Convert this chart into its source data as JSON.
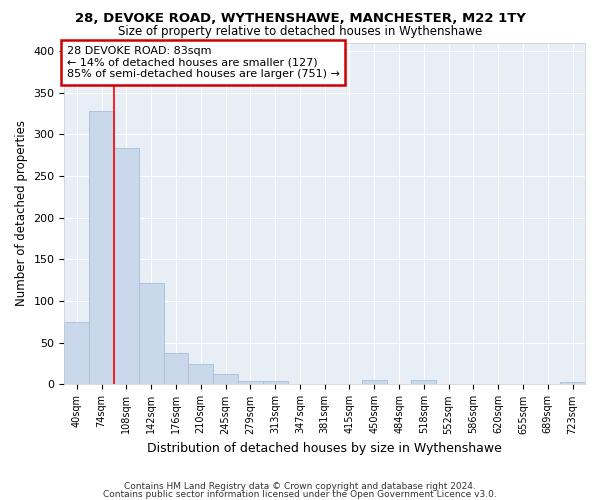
{
  "title1": "28, DEVOKE ROAD, WYTHENSHAWE, MANCHESTER, M22 1TY",
  "title2": "Size of property relative to detached houses in Wythenshawe",
  "xlabel": "Distribution of detached houses by size in Wythenshawe",
  "ylabel": "Number of detached properties",
  "categories": [
    "40sqm",
    "74sqm",
    "108sqm",
    "142sqm",
    "176sqm",
    "210sqm",
    "245sqm",
    "279sqm",
    "313sqm",
    "347sqm",
    "381sqm",
    "415sqm",
    "450sqm",
    "484sqm",
    "518sqm",
    "552sqm",
    "586sqm",
    "620sqm",
    "655sqm",
    "689sqm",
    "723sqm"
  ],
  "values": [
    75,
    328,
    283,
    122,
    38,
    25,
    13,
    4,
    4,
    0,
    0,
    0,
    5,
    0,
    5,
    0,
    0,
    0,
    0,
    0,
    3
  ],
  "bar_color": "#c9d9eb",
  "bar_edge_color": "#a8bfd4",
  "red_line_x": 1.5,
  "annotation_text": "28 DEVOKE ROAD: 83sqm\n← 14% of detached houses are smaller (127)\n85% of semi-detached houses are larger (751) →",
  "annotation_box_color": "#ffffff",
  "annotation_box_edge_color": "#cc0000",
  "fig_bg_color": "#ffffff",
  "plot_bg_color": "#e8eef5",
  "grid_color": "#ffffff",
  "footer1": "Contains HM Land Registry data © Crown copyright and database right 2024.",
  "footer2": "Contains public sector information licensed under the Open Government Licence v3.0.",
  "ylim": [
    0,
    410
  ],
  "yticks": [
    0,
    50,
    100,
    150,
    200,
    250,
    300,
    350,
    400
  ]
}
